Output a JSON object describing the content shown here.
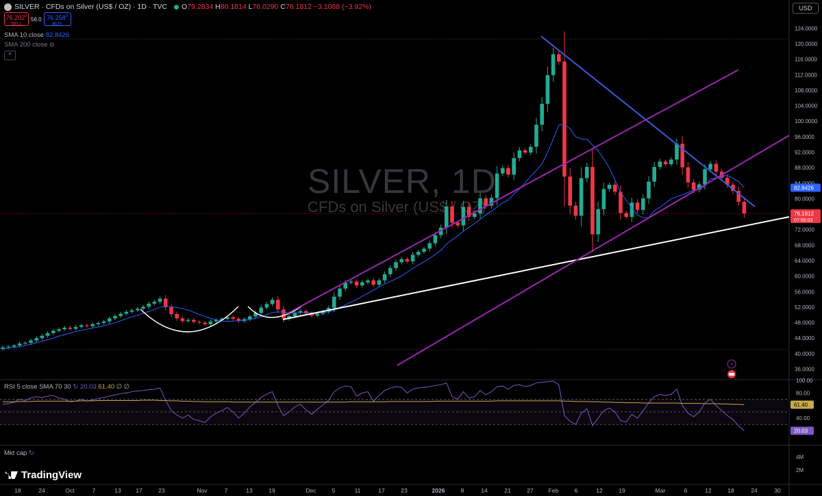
{
  "header": {
    "title": "SILVER · CFDs on Silver (US$ / OZ) · 1D · TVC",
    "open_label": "O",
    "open": "79.2834",
    "high_label": "H",
    "high": "80.1814",
    "low_label": "L",
    "low": "76.0290",
    "close_label": "C",
    "close": "76.1812",
    "change": "−3.1088 (−3.92%)"
  },
  "trade": {
    "sell_price": "76.202",
    "sell_price_sup": "0",
    "sell_label": "SELL",
    "spread": "56.0",
    "buy_price": "76.258",
    "buy_price_sup": "0",
    "buy_label": "BUY"
  },
  "indicators": {
    "sma10_label": "SMA 10 close",
    "sma10_value": "82.8426",
    "sma200_label": "SMA 200 close",
    "rsi_label": "RSI 5 close SMA 70 30",
    "rsi_value": "20.03",
    "rsi_sma_value": "61.40",
    "rsi_extra1": "∅",
    "rsi_extra2": "∅",
    "mktcap_label": "Mkt cap",
    "collapse": "^"
  },
  "currency": "USD",
  "watermark": {
    "symbol": "SILVER, 1D",
    "description": "CFDs on Silver (US$ / OZ)"
  },
  "logo": "TradingView",
  "colors": {
    "up": "#22ab94",
    "down": "#f23645",
    "sma": "#2962ff",
    "rsi": "#7e57c2",
    "rsi_sma": "#c9a94a",
    "channel": "#9c27b0",
    "resistance": "#3b5bdb",
    "support": "#ffffff"
  },
  "chart_data": {
    "type": "candlestick",
    "price_axis": {
      "ticks": [
        "124.0000",
        "120.0000",
        "116.0000",
        "112.0000",
        "108.0000",
        "104.0000",
        "100.0000",
        "96.0000",
        "92.0000",
        "88.0000",
        "84.0000",
        "80.0000",
        "76.0000",
        "72.0000",
        "68.0000",
        "64.0000",
        "60.0000",
        "56.0000",
        "52.0000",
        "48.0000",
        "44.0000",
        "40.0000",
        "36.0000"
      ],
      "range": [
        34.5,
        126
      ],
      "last_price_label": "76.1812",
      "countdown_label": "07:56:03",
      "sma_label": "82.8426"
    },
    "rsi_axis": {
      "ticks": [
        "100.00",
        "80.00",
        "60.00",
        "40.00"
      ],
      "range": [
        0,
        100
      ],
      "levels": [
        70,
        50,
        30
      ],
      "rsi_label": "20.03",
      "sma_label": "61.40"
    },
    "mktcap_axis": {
      "ticks": [
        "4M",
        "2M"
      ]
    },
    "time_axis": [
      "18",
      "24",
      "Oct",
      "7",
      "13",
      "17",
      "23",
      "Nov",
      "7",
      "13",
      "19",
      "Dec",
      "5",
      "11",
      "17",
      "23",
      "2026",
      "8",
      "14",
      "21",
      "27",
      "Feb",
      "6",
      "12",
      "19",
      "Mar",
      "6",
      "12",
      "18",
      "24",
      "30"
    ],
    "closes": [
      41.6,
      41.8,
      42.1,
      42.6,
      42.8,
      43.4,
      44.0,
      44.6,
      45.3,
      45.9,
      46.3,
      46.7,
      46.4,
      46.9,
      47.3,
      47.1,
      47.6,
      47.9,
      48.3,
      49.1,
      49.7,
      50.3,
      50.8,
      51.2,
      51.6,
      52.1,
      52.9,
      53.4,
      54.2,
      52.0,
      50.2,
      49.1,
      48.4,
      48.7,
      48.2,
      48.0,
      47.6,
      48.3,
      48.7,
      49.0,
      49.4,
      49.0,
      48.4,
      48.9,
      49.6,
      50.5,
      51.9,
      52.8,
      53.9,
      51.4,
      49.0,
      49.7,
      50.6,
      51.0,
      50.4,
      49.8,
      50.3,
      50.9,
      51.8,
      54.7,
      56.8,
      58.3,
      58.6,
      57.6,
      58.4,
      58.9,
      57.8,
      58.9,
      60.5,
      62.1,
      63.6,
      64.4,
      63.8,
      65.5,
      66.3,
      67.1,
      68.5,
      70.6,
      72.5,
      78.0,
      73.8,
      73.1,
      77.9,
      75.3,
      76.2,
      80.1,
      78.2,
      80.2,
      86.5,
      87.9,
      86.2,
      90.5,
      92.5,
      91.9,
      93.4,
      99.1,
      104.5,
      111.9,
      117.3,
      115.4,
      85.7,
      78.2,
      75.6,
      85.3,
      88.2,
      70.8,
      77.3,
      82.5,
      83.6,
      81.8,
      76.3,
      75.3,
      79.0,
      77.1,
      80.1,
      84.4,
      88.2,
      89.6,
      88.9,
      90.1,
      94.2,
      88.1,
      84.2,
      82.3,
      83.7,
      87.6,
      89.0,
      87.0,
      85.4,
      83.6,
      82.0,
      79.2,
      76.2
    ],
    "sma10": [
      41.2,
      41.4,
      41.6,
      41.8,
      42.1,
      42.4,
      42.8,
      43.2,
      43.6,
      44.0,
      44.5,
      44.9,
      45.3,
      45.7,
      46.0,
      46.3,
      46.6,
      46.9,
      47.2,
      47.6,
      48.0,
      48.5,
      49.0,
      49.5,
      49.9,
      50.4,
      50.9,
      51.4,
      52.0,
      52.2,
      52.1,
      51.9,
      51.6,
      51.2,
      50.7,
      50.1,
      49.6,
      49.1,
      48.7,
      48.4,
      48.3,
      48.4,
      48.5,
      48.6,
      48.8,
      49.1,
      49.6,
      50.1,
      50.6,
      50.8,
      50.7,
      50.5,
      50.5,
      50.6,
      50.6,
      50.5,
      50.5,
      50.6,
      50.7,
      51.2,
      51.9,
      52.6,
      53.3,
      54.0,
      54.8,
      55.6,
      56.4,
      57.2,
      58.0,
      58.6,
      59.3,
      60.1,
      61.0,
      62.0,
      62.9,
      63.7,
      64.6,
      65.6,
      66.7,
      68.3,
      69.4,
      70.4,
      71.6,
      72.6,
      73.6,
      74.7,
      75.8,
      76.8,
      77.8,
      78.9,
      79.7,
      81.2,
      82.5,
      84.1,
      85.8,
      87.3,
      89.0,
      92.0,
      95.3,
      99.0,
      99.2,
      98.1,
      96.0,
      95.4,
      95.4,
      93.8,
      92.4,
      90.3,
      87.9,
      84.8,
      81.7,
      79.5,
      77.6,
      75.8,
      75.1,
      75.1,
      76.9,
      77.8,
      78.9,
      80.0,
      80.5,
      81.0,
      81.6,
      82.2,
      82.5,
      83.2,
      85.1,
      85.4,
      85.8,
      86.0,
      85.3,
      84.4,
      82.8
    ],
    "rsi": [
      62,
      63,
      65,
      70,
      68,
      72,
      74,
      73,
      75,
      76,
      72,
      70,
      66,
      67,
      70,
      67,
      69,
      71,
      73,
      75,
      77,
      79,
      80,
      82,
      83,
      84,
      85,
      86,
      88,
      68,
      52,
      45,
      40,
      45,
      38,
      36,
      33,
      42,
      48,
      52,
      57,
      50,
      40,
      48,
      58,
      65,
      73,
      78,
      82,
      60,
      44,
      50,
      58,
      62,
      53,
      46,
      54,
      61,
      68,
      82,
      88,
      91,
      90,
      75,
      80,
      82,
      67,
      76,
      84,
      88,
      90,
      89,
      80,
      86,
      88,
      89,
      90,
      92,
      93,
      96,
      74,
      70,
      82,
      72,
      74,
      84,
      77,
      82,
      90,
      91,
      86,
      92,
      93,
      90,
      92,
      96,
      97,
      98,
      99,
      93,
      44,
      35,
      30,
      48,
      55,
      28,
      40,
      52,
      56,
      50,
      36,
      34,
      46,
      40,
      52,
      64,
      74,
      78,
      76,
      78,
      86,
      60,
      48,
      42,
      50,
      64,
      70,
      60,
      52,
      44,
      38,
      28,
      20
    ],
    "rsi_sma": [
      66,
      66,
      66,
      66.5,
      66.5,
      66.5,
      67,
      67,
      67,
      67,
      67,
      67,
      67,
      67,
      67.5,
      67.5,
      67.5,
      68,
      68,
      68,
      68,
      68,
      68,
      68,
      68,
      68.5,
      68.5,
      68.5,
      68,
      68,
      67.5,
      67.5,
      67,
      67,
      66.5,
      66.5,
      66,
      66,
      66,
      66,
      66,
      65.5,
      65.5,
      65.5,
      65.5,
      65.5,
      65.5,
      65.5,
      65.5,
      65.5,
      65.5,
      65.5,
      65.5,
      65.5,
      65.5,
      65.5,
      65.5,
      65.5,
      65.5,
      65.5,
      65.5,
      65.5,
      66,
      66,
      66,
      66,
      66,
      66,
      66,
      66.5,
      66.5,
      66.5,
      66.5,
      66.5,
      66.5,
      66.5,
      66.5,
      67,
      67,
      67,
      67,
      67,
      67,
      67,
      67,
      67,
      67,
      67,
      67.5,
      67.5,
      67.5,
      67.5,
      67.5,
      67.5,
      67.5,
      67.5,
      67.5,
      67.5,
      67.5,
      67.5,
      67,
      67,
      66.5,
      66.5,
      66.5,
      66,
      66,
      65.5,
      65.5,
      65,
      65,
      64.5,
      64.5,
      64.5,
      64,
      64,
      64,
      64,
      64,
      64,
      64,
      63.5,
      63.5,
      63.5,
      63.5,
      63,
      63,
      63,
      62.5,
      62.5,
      62,
      62,
      61.4
    ]
  }
}
